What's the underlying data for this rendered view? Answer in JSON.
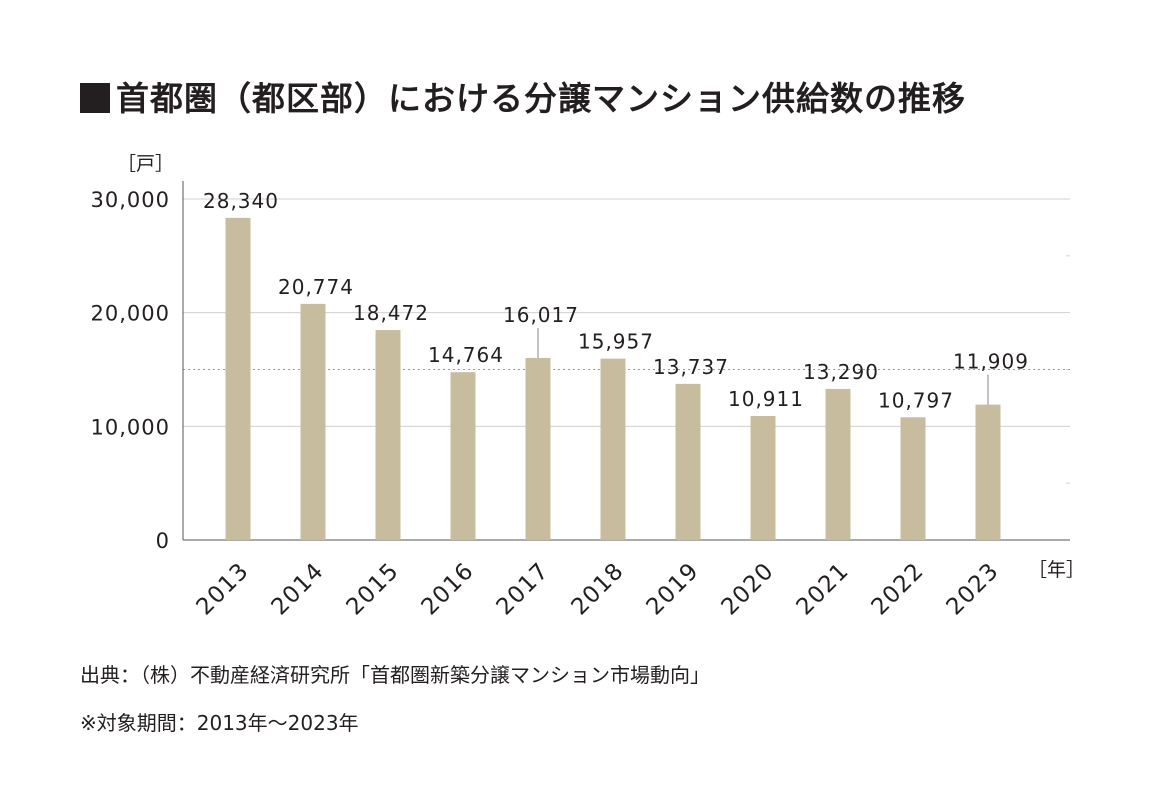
{
  "title": "首都圏（都区部）における分譲マンション供給数の推移",
  "source_note": "出典：（株）不動産経済研究所「首都圏新築分譲マンション市場動向」",
  "period_note": "※対象期間：2013年～2023年",
  "colors": {
    "bar": "#c8bc9e",
    "text": "#231f20",
    "grid": "#d0d0d0",
    "axis": "#555555"
  },
  "chart_data": {
    "type": "bar",
    "title": "首都圏（都区部）における分譲マンション供給数の推移",
    "xlabel": "［年］",
    "ylabel": "［戸］",
    "categories": [
      "2013",
      "2014",
      "2015",
      "2016",
      "2017",
      "2018",
      "2019",
      "2020",
      "2021",
      "2022",
      "2023"
    ],
    "values": [
      28340,
      20774,
      18472,
      14764,
      16017,
      15957,
      13737,
      10911,
      13290,
      10797,
      11909
    ],
    "value_labels": [
      "28,340",
      "20,774",
      "18,472",
      "14,764",
      "16,017",
      "15,957",
      "13,737",
      "10,911",
      "13,290",
      "10,797",
      "11,909"
    ],
    "yticks": [
      0,
      10000,
      20000,
      30000
    ],
    "ytick_labels": [
      "0",
      "10,000",
      "20,000",
      "30,000"
    ],
    "ylim": [
      0,
      30000
    ],
    "reference_line": 15000,
    "grid": true,
    "legend": "none"
  }
}
